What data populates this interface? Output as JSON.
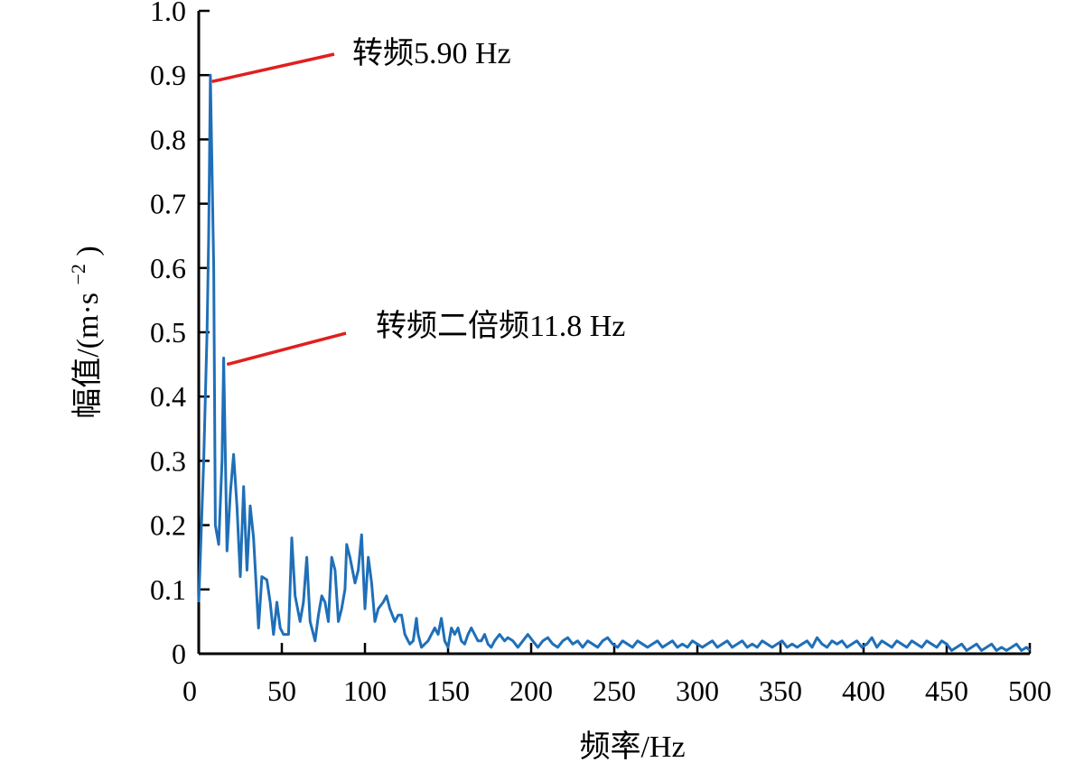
{
  "chart_data": {
    "type": "line",
    "title": "",
    "xlabel": "频率/Hz",
    "ylabel": "幅值/(m·s",
    "ylabel_superscript": "−2",
    "ylabel_suffix": ")",
    "xlim": [
      0,
      500
    ],
    "ylim": [
      0,
      1.0
    ],
    "grid": false,
    "legend": "none",
    "line_color": "#1f6fb8",
    "annotation_color": "#e01f1f",
    "x_ticks": [
      {
        "value": 0,
        "label": "0"
      },
      {
        "value": 50,
        "label": "50"
      },
      {
        "value": 100,
        "label": "100"
      },
      {
        "value": 150,
        "label": "150"
      },
      {
        "value": 200,
        "label": "200"
      },
      {
        "value": 250,
        "label": "250"
      },
      {
        "value": 300,
        "label": "300"
      },
      {
        "value": 350,
        "label": "350"
      },
      {
        "value": 400,
        "label": "400"
      },
      {
        "value": 450,
        "label": "450"
      },
      {
        "value": 500,
        "label": "500"
      }
    ],
    "y_ticks": [
      {
        "value": 0,
        "label": "0"
      },
      {
        "value": 0.1,
        "label": "0.1"
      },
      {
        "value": 0.2,
        "label": "0.2"
      },
      {
        "value": 0.3,
        "label": "0.3"
      },
      {
        "value": 0.4,
        "label": "0.4"
      },
      {
        "value": 0.5,
        "label": "0.5"
      },
      {
        "value": 0.6,
        "label": "0.6"
      },
      {
        "value": 0.7,
        "label": "0.7"
      },
      {
        "value": 0.8,
        "label": "0.8"
      },
      {
        "value": 0.9,
        "label": "0.9"
      },
      {
        "value": 1.0,
        "label": "1.0"
      }
    ],
    "annotations": [
      {
        "text": "转频5.90 Hz",
        "x": 8,
        "y": 0.89
      },
      {
        "text": "转频二倍频11.8 Hz",
        "x": 17,
        "y": 0.45
      }
    ],
    "series": [
      {
        "points": [
          [
            0,
            0.08
          ],
          [
            3,
            0.3
          ],
          [
            5,
            0.5
          ],
          [
            6,
            0.65
          ],
          [
            7,
            0.9
          ],
          [
            9,
            0.6
          ],
          [
            10,
            0.2
          ],
          [
            12,
            0.17
          ],
          [
            14,
            0.3
          ],
          [
            15,
            0.46
          ],
          [
            17,
            0.16
          ],
          [
            19,
            0.25
          ],
          [
            21,
            0.31
          ],
          [
            23,
            0.23
          ],
          [
            25,
            0.12
          ],
          [
            27,
            0.26
          ],
          [
            29,
            0.13
          ],
          [
            31,
            0.23
          ],
          [
            33,
            0.18
          ],
          [
            36,
            0.04
          ],
          [
            38,
            0.12
          ],
          [
            41,
            0.115
          ],
          [
            43,
            0.08
          ],
          [
            45,
            0.03
          ],
          [
            47,
            0.08
          ],
          [
            49,
            0.04
          ],
          [
            51,
            0.03
          ],
          [
            54,
            0.03
          ],
          [
            56,
            0.18
          ],
          [
            58,
            0.09
          ],
          [
            61,
            0.05
          ],
          [
            63,
            0.08
          ],
          [
            65,
            0.15
          ],
          [
            67,
            0.05
          ],
          [
            70,
            0.02
          ],
          [
            72,
            0.06
          ],
          [
            74,
            0.09
          ],
          [
            76,
            0.08
          ],
          [
            78,
            0.05
          ],
          [
            80,
            0.15
          ],
          [
            82,
            0.13
          ],
          [
            84,
            0.05
          ],
          [
            86,
            0.07
          ],
          [
            88,
            0.1
          ],
          [
            89,
            0.17
          ],
          [
            91,
            0.15
          ],
          [
            94,
            0.11
          ],
          [
            96,
            0.13
          ],
          [
            98,
            0.185
          ],
          [
            100,
            0.07
          ],
          [
            102,
            0.15
          ],
          [
            104,
            0.11
          ],
          [
            106,
            0.05
          ],
          [
            108,
            0.07
          ],
          [
            111,
            0.08
          ],
          [
            113,
            0.09
          ],
          [
            115,
            0.07
          ],
          [
            118,
            0.05
          ],
          [
            120,
            0.06
          ],
          [
            122,
            0.06
          ],
          [
            124,
            0.03
          ],
          [
            126,
            0.02
          ],
          [
            127,
            0.015
          ],
          [
            129,
            0.02
          ],
          [
            131,
            0.055
          ],
          [
            132,
            0.03
          ],
          [
            134,
            0.01
          ],
          [
            136,
            0.015
          ],
          [
            138,
            0.02
          ],
          [
            140,
            0.03
          ],
          [
            142,
            0.04
          ],
          [
            144,
            0.03
          ],
          [
            146,
            0.055
          ],
          [
            148,
            0.02
          ],
          [
            150,
            0.01
          ],
          [
            152,
            0.04
          ],
          [
            154,
            0.03
          ],
          [
            156,
            0.04
          ],
          [
            158,
            0.02
          ],
          [
            160,
            0.015
          ],
          [
            162,
            0.03
          ],
          [
            164,
            0.04
          ],
          [
            166,
            0.03
          ],
          [
            168,
            0.02
          ],
          [
            170,
            0.02
          ],
          [
            172,
            0.03
          ],
          [
            174,
            0.015
          ],
          [
            176,
            0.01
          ],
          [
            178,
            0.02
          ],
          [
            181,
            0.03
          ],
          [
            184,
            0.02
          ],
          [
            186,
            0.025
          ],
          [
            189,
            0.02
          ],
          [
            192,
            0.01
          ],
          [
            195,
            0.02
          ],
          [
            198,
            0.03
          ],
          [
            201,
            0.02
          ],
          [
            204,
            0.01
          ],
          [
            207,
            0.02
          ],
          [
            210,
            0.025
          ],
          [
            213,
            0.015
          ],
          [
            216,
            0.01
          ],
          [
            219,
            0.02
          ],
          [
            222,
            0.025
          ],
          [
            225,
            0.015
          ],
          [
            228,
            0.02
          ],
          [
            231,
            0.01
          ],
          [
            234,
            0.02
          ],
          [
            237,
            0.015
          ],
          [
            240,
            0.01
          ],
          [
            243,
            0.02
          ],
          [
            246,
            0.025
          ],
          [
            249,
            0.015
          ],
          [
            252,
            0.01
          ],
          [
            255,
            0.02
          ],
          [
            258,
            0.015
          ],
          [
            261,
            0.01
          ],
          [
            264,
            0.02
          ],
          [
            267,
            0.015
          ],
          [
            270,
            0.01
          ],
          [
            273,
            0.015
          ],
          [
            276,
            0.02
          ],
          [
            279,
            0.01
          ],
          [
            282,
            0.015
          ],
          [
            285,
            0.02
          ],
          [
            288,
            0.01
          ],
          [
            291,
            0.015
          ],
          [
            294,
            0.01
          ],
          [
            297,
            0.02
          ],
          [
            300,
            0.015
          ],
          [
            303,
            0.01
          ],
          [
            306,
            0.015
          ],
          [
            309,
            0.02
          ],
          [
            312,
            0.01
          ],
          [
            315,
            0.015
          ],
          [
            318,
            0.02
          ],
          [
            321,
            0.01
          ],
          [
            324,
            0.015
          ],
          [
            327,
            0.02
          ],
          [
            330,
            0.01
          ],
          [
            333,
            0.015
          ],
          [
            336,
            0.01
          ],
          [
            339,
            0.02
          ],
          [
            342,
            0.015
          ],
          [
            345,
            0.01
          ],
          [
            348,
            0.015
          ],
          [
            351,
            0.02
          ],
          [
            354,
            0.01
          ],
          [
            357,
            0.015
          ],
          [
            360,
            0.01
          ],
          [
            363,
            0.015
          ],
          [
            366,
            0.02
          ],
          [
            369,
            0.01
          ],
          [
            372,
            0.025
          ],
          [
            375,
            0.015
          ],
          [
            378,
            0.01
          ],
          [
            381,
            0.02
          ],
          [
            384,
            0.015
          ],
          [
            387,
            0.02
          ],
          [
            390,
            0.01
          ],
          [
            393,
            0.015
          ],
          [
            396,
            0.02
          ],
          [
            399,
            0.01
          ],
          [
            402,
            0.015
          ],
          [
            405,
            0.025
          ],
          [
            408,
            0.01
          ],
          [
            411,
            0.02
          ],
          [
            414,
            0.015
          ],
          [
            417,
            0.01
          ],
          [
            420,
            0.02
          ],
          [
            423,
            0.015
          ],
          [
            426,
            0.01
          ],
          [
            429,
            0.02
          ],
          [
            432,
            0.015
          ],
          [
            435,
            0.01
          ],
          [
            438,
            0.02
          ],
          [
            441,
            0.015
          ],
          [
            444,
            0.01
          ],
          [
            447,
            0.02
          ],
          [
            450,
            0.015
          ],
          [
            453,
            0.005
          ],
          [
            456,
            0.01
          ],
          [
            459,
            0.015
          ],
          [
            462,
            0.005
          ],
          [
            465,
            0.01
          ],
          [
            468,
            0.015
          ],
          [
            471,
            0.005
          ],
          [
            474,
            0.01
          ],
          [
            477,
            0.015
          ],
          [
            480,
            0.005
          ],
          [
            483,
            0.01
          ],
          [
            486,
            0.005
          ],
          [
            489,
            0.01
          ],
          [
            492,
            0.015
          ],
          [
            495,
            0.005
          ],
          [
            498,
            0.01
          ],
          [
            500,
            0.005
          ]
        ]
      }
    ]
  }
}
